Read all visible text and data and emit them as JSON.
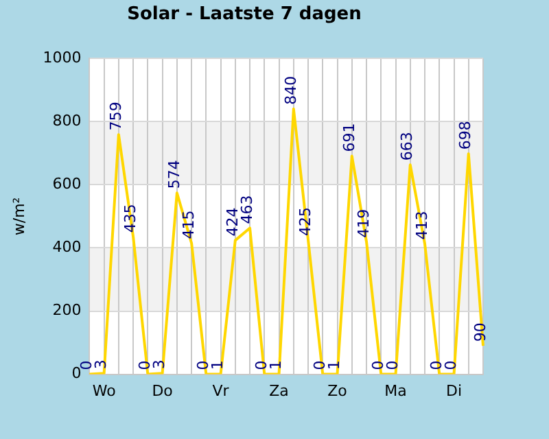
{
  "chart_data": {
    "type": "line",
    "title": "Solar - Laatste 7 dagen",
    "ylabel": "w/m²",
    "categories": [
      null,
      "Wo",
      null,
      null,
      null,
      "Do",
      null,
      null,
      null,
      "Vr",
      null,
      null,
      null,
      "Za",
      null,
      null,
      null,
      "Zo",
      null,
      null,
      null,
      "Ma",
      null,
      null,
      null,
      "Di",
      null,
      null
    ],
    "series": [
      {
        "color": "#ffd700",
        "values": [
          0,
          3,
          759,
          435,
          0,
          3,
          574,
          415,
          0,
          1,
          424,
          463,
          0,
          1,
          840,
          425,
          0,
          1,
          691,
          419,
          0,
          0,
          663,
          413,
          0,
          0,
          698,
          90
        ]
      }
    ],
    "ylim": [
      0,
      1000
    ],
    "yticks": [
      0,
      200,
      400,
      600,
      800,
      1000
    ],
    "grid": true,
    "legend": false,
    "marker": "none",
    "data_labels": true,
    "bands": [
      {
        "axis": "y",
        "from": 200,
        "to": 400,
        "color": "#f2f2f2"
      },
      {
        "axis": "y",
        "from": 600,
        "to": 800,
        "color": "#f2f2f2"
      }
    ]
  }
}
